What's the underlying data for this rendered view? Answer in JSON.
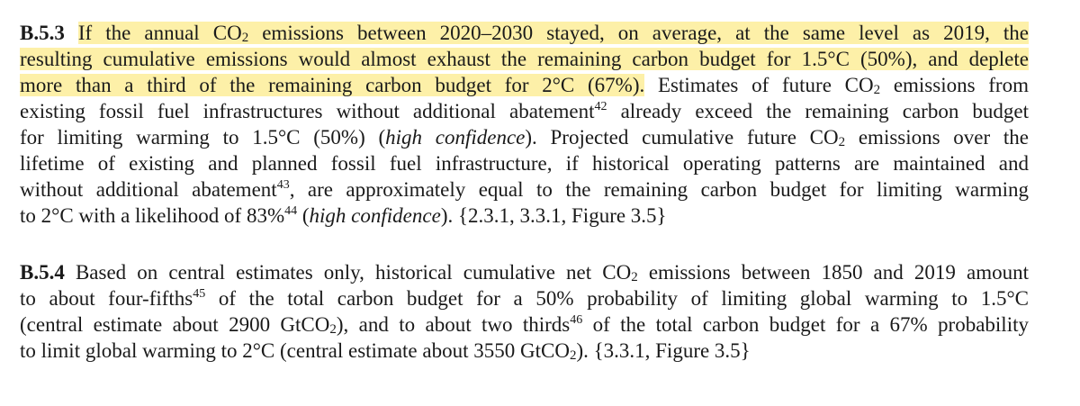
{
  "paragraphs": [
    {
      "id": "B.5.3",
      "label": "B.5.3",
      "highlighted_text": "If the annual CO₂ emissions between 2020–2030 stayed, on average, at the same level as 2019, the resulting cumulative emissions would almost exhaust the remaining carbon budget for 1.5°C (50%), and deplete more than a third of the remaining carbon budget for 2°C (67%).",
      "lines": [
        {
          "hl": "If the annual CO",
          "sub": "2",
          "hl2": " emissions between 2020–2030 stayed, on average, at the same level as 2019, the"
        },
        {
          "hl": "resulting cumulative emissions would almost exhaust the remaining carbon budget for 1.5°C (50%), and deplete"
        },
        {
          "hl": "more than a third of the remaining carbon budget for 2°C (67%).",
          "rest_a": " Estimates of future CO",
          "sub": "2",
          "rest_b": " emissions from"
        },
        {
          "a": "existing fossil fuel infrastructures without additional abatement",
          "sup": "42",
          "b": " already exceed the remaining carbon budget"
        },
        {
          "a": "for limiting warming to 1.5°C (50%) (",
          "em": "high confidence",
          "b": "). Projected cumulative future CO",
          "sub": "2",
          "c": " emissions over the"
        },
        {
          "a": "lifetime of existing and planned fossil fuel infrastructure, if historical operating patterns are maintained and"
        },
        {
          "a": "without additional abatement",
          "sup": "43",
          "b": ", are approximately equal to the remaining carbon budget for limiting warming"
        },
        {
          "a": "to 2°C with a likelihood of 83%",
          "sup": "44",
          "b": " (",
          "em": "high confidence",
          "c": "). {2.3.1, 3.3.1, Figure 3.5}"
        }
      ]
    },
    {
      "id": "B.5.4",
      "label": "B.5.4",
      "lines": [
        {
          "a": " Based on central estimates only, historical cumulative net CO",
          "sub": "2",
          "b": " emissions between 1850 and 2019 amount"
        },
        {
          "a": "to about four-fifths",
          "sup": "45",
          "b": " of the total carbon budget for a 50% probability of limiting global warming to 1.5°C"
        },
        {
          "a": "(central estimate about 2900 GtCO",
          "sub": "2",
          "b": "), and to about two thirds",
          "sup": "46",
          "c": " of the total carbon budget for a 67% probability"
        },
        {
          "a": "to limit global warming to 2°C (central estimate about 3550 GtCO",
          "sub": "2",
          "b": "). {3.3.1, Figure 3.5}"
        }
      ]
    }
  ],
  "colors": {
    "highlight": "#fdf0a8",
    "text": "#1a1a1a",
    "background": "#ffffff"
  }
}
